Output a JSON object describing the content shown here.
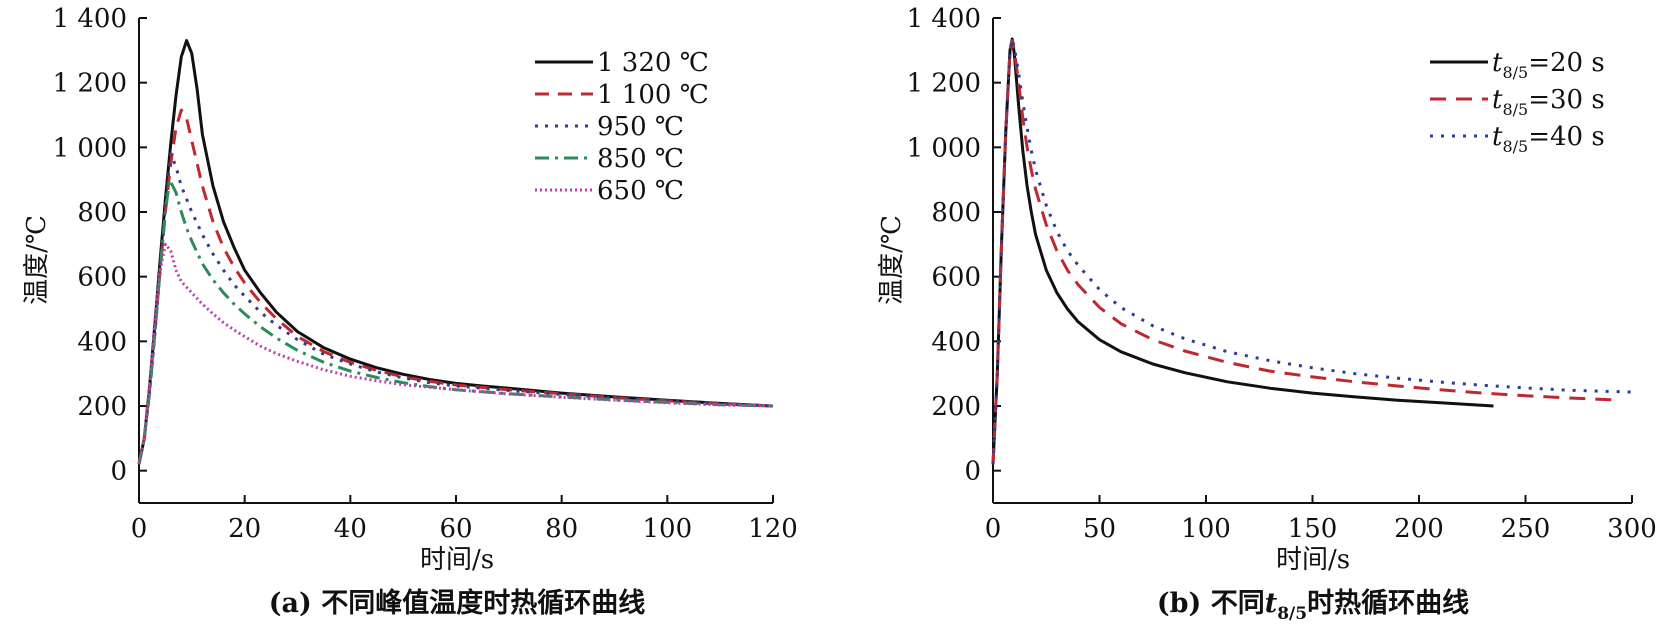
{
  "chart_data": [
    {
      "id": "a",
      "type": "line",
      "caption": "(a) 不同峰值温度时热循环曲线",
      "xlabel": "时间/s",
      "ylabel": "温度/℃",
      "xlim": [
        0,
        120
      ],
      "ylim": [
        -100,
        1400
      ],
      "xticks": [
        0,
        20,
        40,
        60,
        80,
        100,
        120
      ],
      "yticks": [
        0,
        200,
        400,
        600,
        800,
        1000,
        1200,
        1400
      ],
      "ytick_labels": [
        "0",
        "200",
        "400",
        "600",
        "800",
        "1 000",
        "1 200",
        "1 400"
      ],
      "xtick_labels": [
        "0",
        "20",
        "40",
        "60",
        "80",
        "100",
        "120"
      ],
      "legend_position": "top-right",
      "series": [
        {
          "name": "1 320 ℃",
          "color": "#111111",
          "dash": "solid",
          "width": 3,
          "x": [
            0,
            1,
            2,
            3,
            4,
            5,
            6,
            7,
            8,
            9,
            10,
            11,
            12,
            14,
            16,
            18,
            20,
            23,
            26,
            30,
            35,
            40,
            45,
            50,
            55,
            60,
            65,
            70,
            80,
            90,
            100,
            110,
            120
          ],
          "y": [
            20,
            100,
            260,
            450,
            650,
            840,
            1010,
            1160,
            1280,
            1330,
            1290,
            1180,
            1040,
            880,
            770,
            690,
            620,
            550,
            490,
            430,
            380,
            345,
            318,
            298,
            282,
            270,
            262,
            255,
            240,
            228,
            218,
            208,
            200
          ]
        },
        {
          "name": "1 100 ℃",
          "color": "#c0282f",
          "dash": "14,9",
          "width": 3,
          "x": [
            0,
            1,
            2,
            3,
            4,
            5,
            6,
            7,
            8,
            9,
            10,
            12,
            14,
            16,
            18,
            20,
            23,
            26,
            30,
            35,
            40,
            45,
            50,
            55,
            60,
            70,
            80,
            90,
            100,
            110,
            120
          ],
          "y": [
            20,
            100,
            250,
            430,
            620,
            800,
            950,
            1060,
            1115,
            1090,
            1020,
            880,
            770,
            690,
            630,
            580,
            520,
            470,
            415,
            368,
            335,
            310,
            290,
            276,
            265,
            250,
            238,
            226,
            216,
            207,
            200
          ]
        },
        {
          "name": "950  ℃",
          "color": "#2f3d8f",
          "dash": "3,7",
          "width": 3,
          "x": [
            0,
            1,
            2,
            3,
            4,
            5,
            6,
            7,
            8,
            9,
            10,
            12,
            14,
            16,
            18,
            20,
            23,
            26,
            30,
            35,
            40,
            45,
            50,
            55,
            60,
            70,
            80,
            90,
            100,
            110,
            120
          ],
          "y": [
            20,
            100,
            240,
            420,
            620,
            820,
            980,
            940,
            880,
            840,
            800,
            730,
            670,
            620,
            575,
            540,
            490,
            450,
            405,
            360,
            330,
            305,
            287,
            272,
            262,
            248,
            236,
            225,
            215,
            206,
            200
          ]
        },
        {
          "name": "850 ℃",
          "color": "#2d8a5b",
          "dash": "14,6,3,6",
          "width": 3,
          "x": [
            0,
            1,
            2,
            3,
            4,
            5,
            5.8,
            7,
            8,
            9,
            10,
            12,
            14,
            16,
            18,
            20,
            23,
            26,
            30,
            35,
            40,
            45,
            50,
            55,
            60,
            70,
            80,
            90,
            100,
            110,
            120
          ],
          "y": [
            20,
            100,
            240,
            420,
            620,
            800,
            900,
            860,
            800,
            750,
            710,
            640,
            590,
            550,
            515,
            485,
            445,
            410,
            372,
            335,
            308,
            288,
            272,
            260,
            250,
            238,
            228,
            219,
            211,
            204,
            200
          ]
        },
        {
          "name": "650 ℃",
          "color": "#c03fb0",
          "dash": "2,3",
          "width": 3,
          "x": [
            0,
            1,
            2,
            3,
            4,
            5,
            6,
            7,
            8,
            10,
            12,
            14,
            16,
            18,
            20,
            23,
            26,
            30,
            35,
            40,
            45,
            50,
            55,
            60,
            70,
            80,
            90,
            100,
            110,
            120
          ],
          "y": [
            20,
            100,
            260,
            460,
            620,
            700,
            680,
            620,
            585,
            550,
            515,
            485,
            458,
            435,
            415,
            385,
            362,
            338,
            312,
            292,
            278,
            266,
            258,
            250,
            237,
            227,
            218,
            210,
            203,
            200
          ]
        }
      ]
    },
    {
      "id": "b",
      "type": "line",
      "caption_prefix": "(b) 不同",
      "caption_symbol": "t",
      "caption_subscript": "8/5",
      "caption_suffix": "时热循环曲线",
      "xlabel": "时间/s",
      "ylabel": "温度/℃",
      "xlim": [
        0,
        300
      ],
      "ylim": [
        -100,
        1400
      ],
      "xticks": [
        0,
        50,
        100,
        150,
        200,
        250,
        300
      ],
      "yticks": [
        0,
        200,
        400,
        600,
        800,
        1000,
        1200,
        1400
      ],
      "ytick_labels": [
        "0",
        "200",
        "400",
        "600",
        "800",
        "1 000",
        "1 200",
        "1 400"
      ],
      "xtick_labels": [
        "0",
        "50",
        "100",
        "150",
        "200",
        "250",
        "300"
      ],
      "legend_position": "top-right",
      "legend_symbol": "t",
      "legend_subscript": "8/5",
      "series": [
        {
          "name": "=20 s",
          "color": "#111111",
          "dash": "solid",
          "width": 3,
          "x": [
            0,
            2,
            4,
            6,
            8,
            9,
            10,
            12,
            14,
            16,
            18,
            20,
            25,
            30,
            35,
            40,
            50,
            60,
            75,
            90,
            110,
            130,
            150,
            170,
            190,
            210,
            235
          ],
          "y": [
            20,
            300,
            700,
            1050,
            1300,
            1335,
            1290,
            1130,
            990,
            880,
            800,
            730,
            620,
            550,
            500,
            460,
            405,
            368,
            330,
            303,
            275,
            255,
            240,
            228,
            218,
            210,
            200
          ]
        },
        {
          "name": "=30 s",
          "color": "#c0282f",
          "dash": "16,10",
          "width": 3,
          "x": [
            0,
            2,
            4,
            6,
            8,
            9,
            10,
            12,
            14,
            16,
            18,
            20,
            25,
            30,
            35,
            40,
            50,
            60,
            75,
            90,
            110,
            130,
            150,
            170,
            190,
            210,
            230,
            250,
            270,
            295
          ],
          "y": [
            20,
            300,
            700,
            1050,
            1300,
            1330,
            1300,
            1200,
            1090,
            1000,
            930,
            870,
            760,
            680,
            620,
            575,
            505,
            455,
            405,
            370,
            335,
            308,
            290,
            275,
            262,
            250,
            240,
            232,
            225,
            218
          ]
        },
        {
          "name": "=40 s",
          "color": "#2f3d8f",
          "dash": "3,8",
          "width": 3,
          "x": [
            0,
            2,
            4,
            6,
            8,
            9,
            10,
            12,
            14,
            16,
            18,
            20,
            25,
            30,
            35,
            40,
            50,
            60,
            75,
            90,
            110,
            130,
            150,
            170,
            190,
            210,
            230,
            250,
            270,
            300
          ],
          "y": [
            20,
            300,
            700,
            1050,
            1300,
            1335,
            1310,
            1230,
            1140,
            1060,
            990,
            930,
            820,
            740,
            680,
            635,
            560,
            505,
            448,
            408,
            368,
            340,
            318,
            300,
            286,
            274,
            264,
            256,
            249,
            243
          ]
        }
      ]
    }
  ]
}
